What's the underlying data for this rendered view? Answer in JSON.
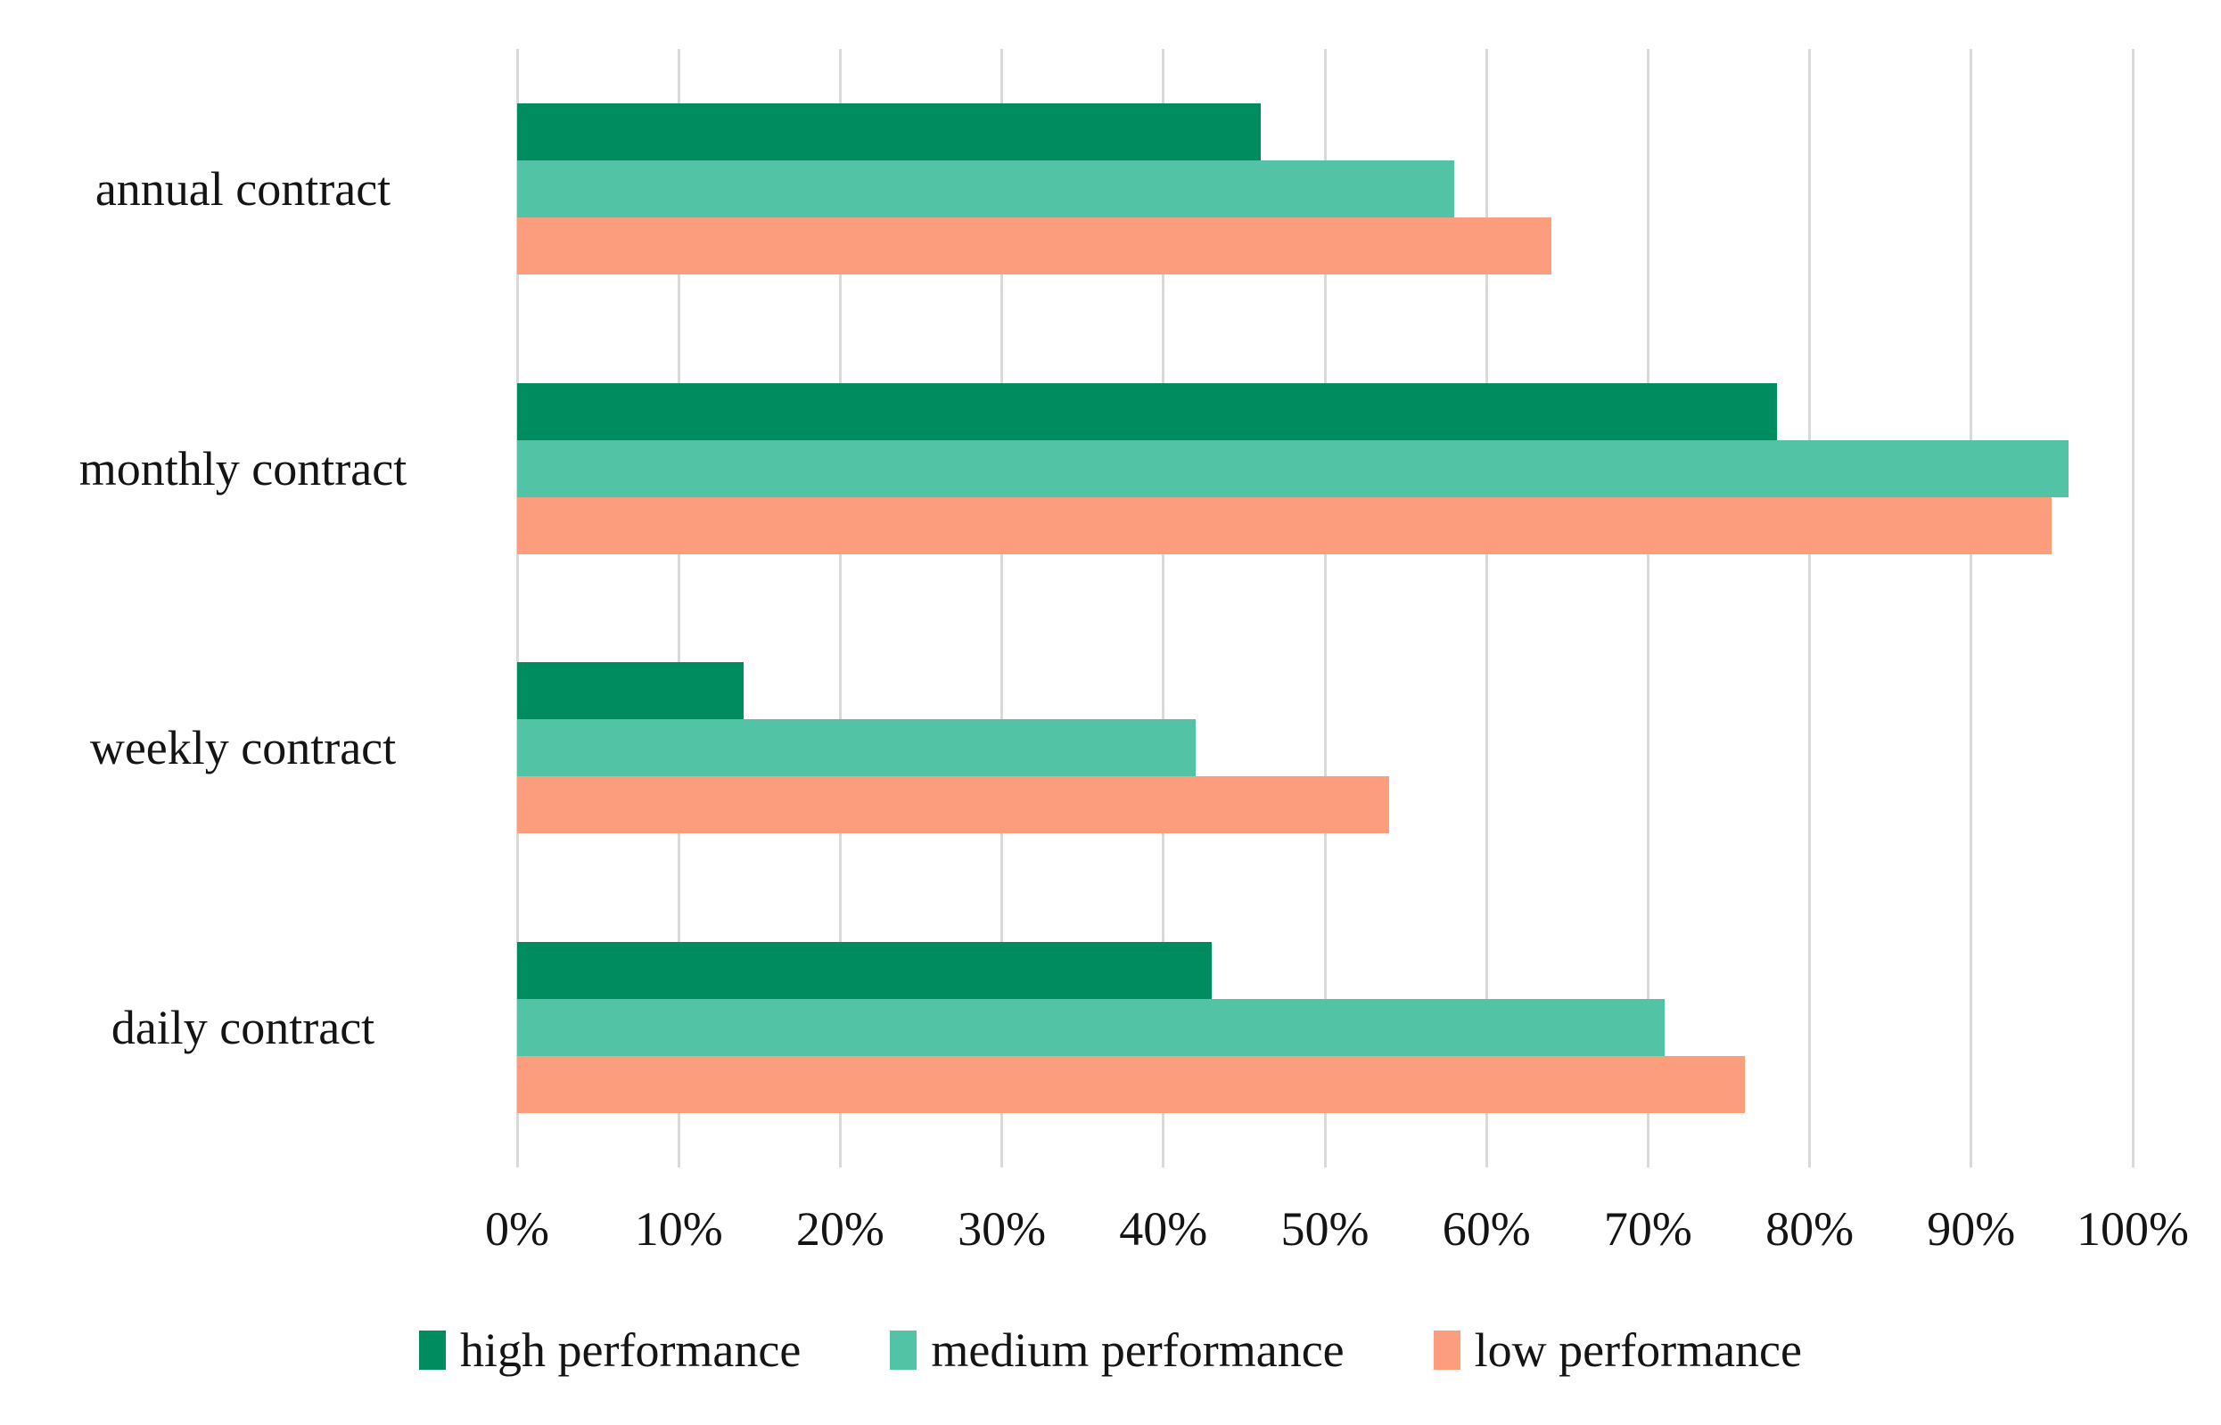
{
  "chart_data": {
    "type": "bar",
    "orientation": "horizontal",
    "title": "",
    "xlabel": "",
    "ylabel": "",
    "categories": [
      "annual contract",
      "monthly contract",
      "weekly contract",
      "daily contract"
    ],
    "series": [
      {
        "name": "high performance",
        "color": "#008C5F",
        "values": [
          46,
          78,
          14,
          43
        ]
      },
      {
        "name": "medium performance",
        "color": "#53C3A5",
        "values": [
          58,
          96,
          42,
          71
        ]
      },
      {
        "name": "low performance",
        "color": "#FC9D7D",
        "values": [
          64,
          95,
          54,
          76
        ]
      }
    ],
    "x_axis": {
      "min": 0,
      "max": 100,
      "step": 10,
      "tick_labels": [
        "0%",
        "10%",
        "20%",
        "30%",
        "40%",
        "50%",
        "60%",
        "70%",
        "80%",
        "90%",
        "100%"
      ]
    },
    "grid": {
      "vertical": true,
      "horizontal": false,
      "color": "#d9d9d9"
    },
    "legend": {
      "position": "bottom",
      "entries": [
        "high performance",
        "medium performance",
        "low performance"
      ]
    },
    "background": "#ffffff",
    "text_color": "#141414"
  }
}
